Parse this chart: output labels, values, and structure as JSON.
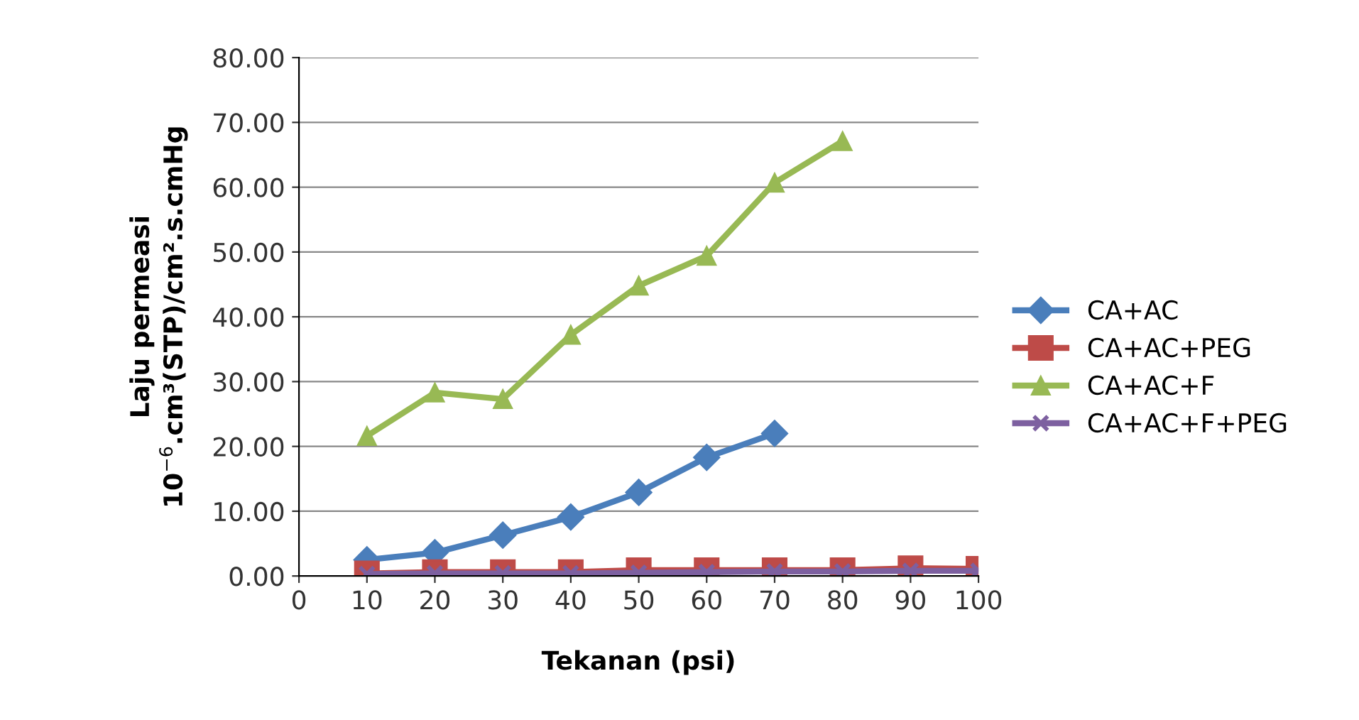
{
  "chart_data": {
    "type": "line",
    "xlabel": "Tekanan (psi)",
    "ylabel": "Laju permeasi\n10$^{−6}$.cm³(STP)/cm².s.cmHg",
    "xlim": [
      0,
      100
    ],
    "xticks": [
      0,
      10,
      20,
      30,
      40,
      50,
      60,
      70,
      80,
      90,
      100
    ],
    "ylim": [
      0,
      80
    ],
    "yticks": [
      {
        "value": 0,
        "label": "0.00"
      },
      {
        "value": 10,
        "label": "10.00"
      },
      {
        "value": 20,
        "label": "20.00"
      },
      {
        "value": 30,
        "label": "30.00"
      },
      {
        "value": 40,
        "label": "40.00"
      },
      {
        "value": 50,
        "label": "50.00"
      },
      {
        "value": 60,
        "label": "60.00"
      },
      {
        "value": 70,
        "label": "70.00"
      },
      {
        "value": 80,
        "label": "80.00"
      }
    ],
    "grid": "y",
    "legend": "right",
    "series": [
      {
        "name": "CA+AC",
        "color": "#4a7ebb",
        "marker": "diamond",
        "x": [
          10,
          20,
          30,
          40,
          50,
          60,
          70
        ],
        "values": [
          2.5,
          3.6,
          6.3,
          9.1,
          12.9,
          18.3,
          22.0
        ]
      },
      {
        "name": "CA+AC+PEG",
        "color": "#be4b48",
        "marker": "square",
        "x": [
          10,
          20,
          30,
          40,
          50,
          60,
          70,
          80,
          90,
          100
        ],
        "values": [
          0.4,
          0.6,
          0.6,
          0.6,
          0.9,
          0.9,
          0.9,
          0.9,
          1.2,
          1.1
        ]
      },
      {
        "name": "CA+AC+F",
        "color": "#98b954",
        "marker": "triangle",
        "x": [
          10,
          20,
          30,
          40,
          50,
          60,
          70,
          80
        ],
        "values": [
          21.6,
          28.3,
          27.3,
          37.2,
          44.8,
          49.4,
          60.7,
          67.1
        ]
      },
      {
        "name": "CA+AC+F+PEG",
        "color": "#7d60a0",
        "marker": "cross",
        "x": [
          10,
          20,
          30,
          40,
          50,
          60,
          70,
          80,
          90,
          100
        ],
        "values": [
          0.3,
          0.4,
          0.4,
          0.4,
          0.5,
          0.6,
          0.7,
          0.7,
          0.8,
          0.8
        ]
      }
    ]
  }
}
